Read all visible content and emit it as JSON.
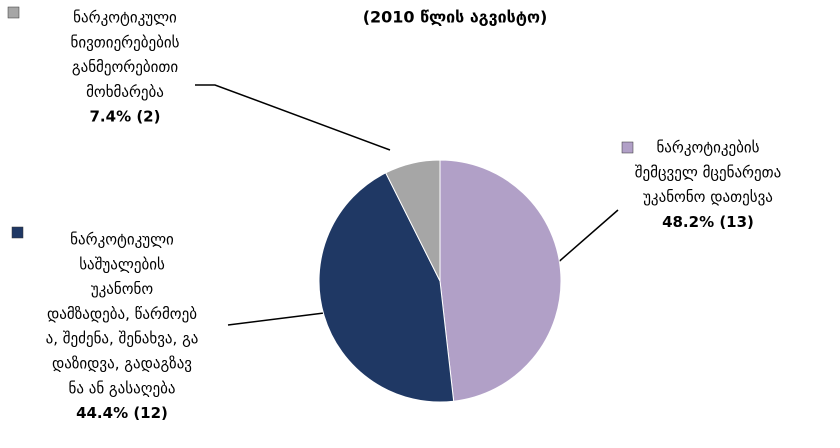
{
  "chart_data": {
    "type": "pie",
    "title": "(2010 წლის აგვისტო)",
    "categories": [
      [
        "ნარკოტიკების",
        "შემცველ მცენარეთა",
        "უკანონო დათესვა"
      ],
      [
        "ნარკოტიკული",
        "საშუალების",
        "უკანონო",
        "დამზადება, წარმოებ",
        "ა, შეძენა, შენახვა, გა",
        "დაზიდვა, გადაგზავ",
        "ნა ან გასაღება"
      ],
      [
        "ნარკოტიკული",
        "ნივთიერებების",
        "განმეორებითი",
        "მოხმარება"
      ]
    ],
    "values": [
      48.2,
      44.4,
      7.4
    ],
    "value_labels": [
      "48.2%  (13)",
      "44.4%  (12)",
      "7.4%  (2)"
    ],
    "colors": [
      "#b1a0c7",
      "#1f3864",
      "#a6a6a6"
    ]
  }
}
